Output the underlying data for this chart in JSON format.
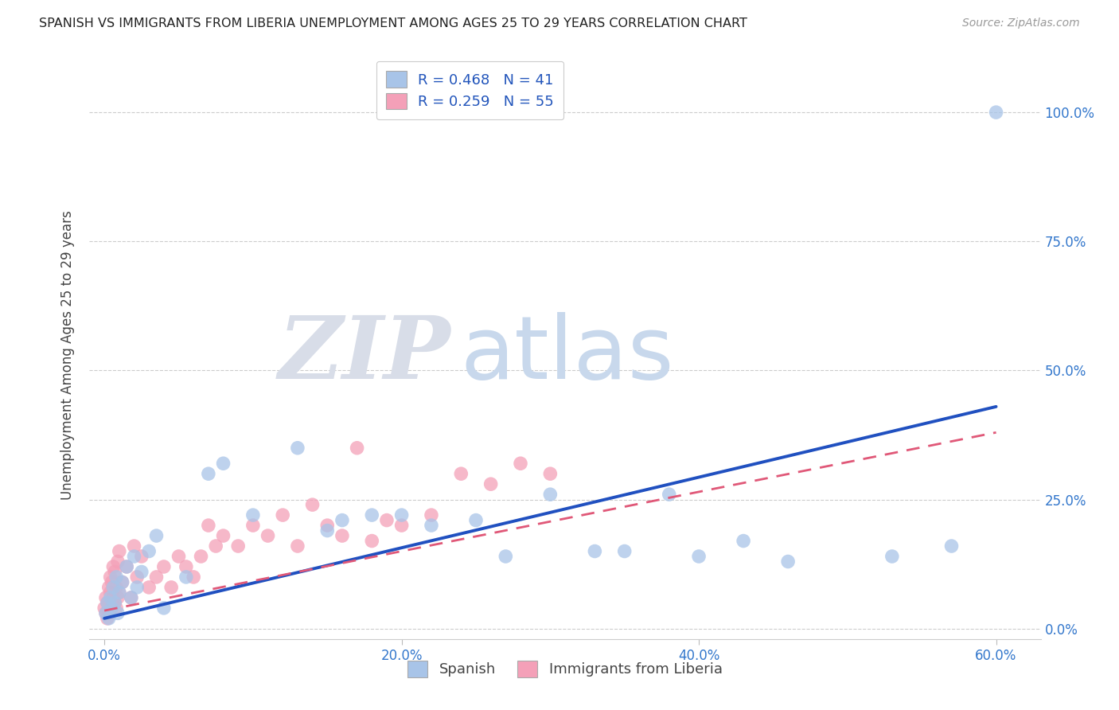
{
  "title": "SPANISH VS IMMIGRANTS FROM LIBERIA UNEMPLOYMENT AMONG AGES 25 TO 29 YEARS CORRELATION CHART",
  "source": "Source: ZipAtlas.com",
  "xlabel_tick_vals": [
    0.0,
    0.2,
    0.4,
    0.6
  ],
  "ylabel_tick_vals": [
    0.0,
    0.25,
    0.5,
    0.75,
    1.0
  ],
  "ylabel": "Unemployment Among Ages 25 to 29 years",
  "xlim": [
    -0.01,
    0.63
  ],
  "ylim": [
    -0.02,
    1.08
  ],
  "watermark_zip": "ZIP",
  "watermark_atlas": "atlas",
  "spanish_color": "#a8c4e8",
  "liberia_color": "#f4a0b8",
  "spanish_R": 0.468,
  "spanish_N": 41,
  "liberia_R": 0.259,
  "liberia_N": 55,
  "spanish_line_color": "#2050c0",
  "liberia_line_color": "#e05878",
  "legend_label_spanish": "Spanish",
  "legend_label_liberia": "Immigrants from Liberia",
  "spanish_x": [
    0.001,
    0.002,
    0.003,
    0.004,
    0.005,
    0.006,
    0.007,
    0.008,
    0.009,
    0.01,
    0.012,
    0.015,
    0.018,
    0.02,
    0.022,
    0.025,
    0.03,
    0.035,
    0.04,
    0.055,
    0.07,
    0.08,
    0.1,
    0.13,
    0.15,
    0.16,
    0.18,
    0.2,
    0.22,
    0.25,
    0.27,
    0.3,
    0.33,
    0.35,
    0.38,
    0.4,
    0.43,
    0.46,
    0.53,
    0.57,
    0.6
  ],
  "spanish_y": [
    0.03,
    0.05,
    0.02,
    0.06,
    0.04,
    0.08,
    0.05,
    0.1,
    0.03,
    0.07,
    0.09,
    0.12,
    0.06,
    0.14,
    0.08,
    0.11,
    0.15,
    0.18,
    0.04,
    0.1,
    0.3,
    0.32,
    0.22,
    0.35,
    0.19,
    0.21,
    0.22,
    0.22,
    0.2,
    0.21,
    0.14,
    0.26,
    0.15,
    0.15,
    0.26,
    0.14,
    0.17,
    0.13,
    0.14,
    0.16,
    1.0
  ],
  "liberia_x": [
    0.0,
    0.001,
    0.001,
    0.002,
    0.002,
    0.003,
    0.003,
    0.004,
    0.004,
    0.005,
    0.005,
    0.006,
    0.006,
    0.007,
    0.007,
    0.008,
    0.008,
    0.009,
    0.009,
    0.01,
    0.01,
    0.012,
    0.015,
    0.018,
    0.02,
    0.022,
    0.025,
    0.03,
    0.035,
    0.04,
    0.045,
    0.05,
    0.055,
    0.06,
    0.065,
    0.07,
    0.075,
    0.08,
    0.09,
    0.1,
    0.11,
    0.12,
    0.13,
    0.14,
    0.15,
    0.16,
    0.17,
    0.18,
    0.19,
    0.2,
    0.22,
    0.24,
    0.26,
    0.28,
    0.3
  ],
  "liberia_y": [
    0.04,
    0.03,
    0.06,
    0.02,
    0.05,
    0.08,
    0.03,
    0.07,
    0.1,
    0.04,
    0.09,
    0.06,
    0.12,
    0.05,
    0.11,
    0.04,
    0.08,
    0.06,
    0.13,
    0.07,
    0.15,
    0.09,
    0.12,
    0.06,
    0.16,
    0.1,
    0.14,
    0.08,
    0.1,
    0.12,
    0.08,
    0.14,
    0.12,
    0.1,
    0.14,
    0.2,
    0.16,
    0.18,
    0.16,
    0.2,
    0.18,
    0.22,
    0.16,
    0.24,
    0.2,
    0.18,
    0.35,
    0.17,
    0.21,
    0.2,
    0.22,
    0.3,
    0.28,
    0.32,
    0.3
  ],
  "spanish_line_x0": 0.0,
  "spanish_line_x1": 0.6,
  "spanish_line_y0": 0.02,
  "spanish_line_y1": 0.43,
  "liberia_line_x0": 0.0,
  "liberia_line_x1": 0.6,
  "liberia_line_y0": 0.035,
  "liberia_line_y1": 0.38
}
